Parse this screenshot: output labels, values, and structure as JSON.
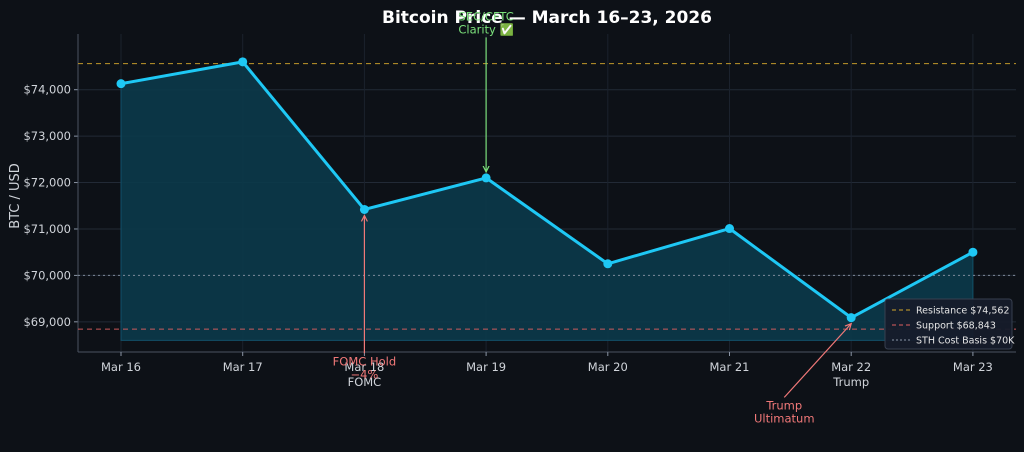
{
  "chart_data": {
    "type": "line",
    "title": "Bitcoin Price — March 16–23, 2026",
    "ylabel": "BTC / USD",
    "xlabel": "",
    "categories": [
      "Mar 16",
      "Mar 17",
      "Mar 18",
      "Mar 19",
      "Mar 20",
      "Mar 21",
      "Mar 22",
      "Mar 23"
    ],
    "series": [
      {
        "values": [
          74130,
          74600,
          71420,
          72100,
          70250,
          71010,
          69090,
          70500
        ],
        "color": "#1ec8f5",
        "fill": "#0b3a4a"
      }
    ],
    "ylim": [
      68350,
      75200
    ],
    "yticks": [
      69000,
      70000,
      71000,
      72000,
      73000,
      74000
    ],
    "ytick_labels": [
      "$69,000",
      "$70,000",
      "$71,000",
      "$72,000",
      "$73,000",
      "$74,000"
    ],
    "area_floor": 68600,
    "grid": true,
    "reference_lines": [
      {
        "label": "Resistance $74,562",
        "value": 74562,
        "color": "#d4a72c",
        "style": "dashed"
      },
      {
        "label": "Support $68,843",
        "value": 68843,
        "color": "#e06060",
        "style": "dashed"
      },
      {
        "label": "STH Cost Basis $70K",
        "value": 70000,
        "color": "#8b95a5",
        "style": "dotted"
      }
    ],
    "legend_position": "bottom-right",
    "annotations": [
      {
        "lines": [
          "SEC/CFTC",
          "Clarity ✅"
        ],
        "category": "Mar 19",
        "value": 72100,
        "color": "#7be07b",
        "text_value": 75450
      },
      {
        "lines": [
          "FOMC Hold",
          "−4%"
        ],
        "category": "Mar 18",
        "value": 71420,
        "color": "#f07878",
        "text_value": 68150
      },
      {
        "lines": [
          "Trump",
          "Ultimatum"
        ],
        "category": "Mar 22",
        "value": 69090,
        "color": "#f07878",
        "text_value": 67200,
        "x_offset": -0.55
      }
    ],
    "x_sublabels": [
      {
        "category": "Mar 18",
        "text": "FOMC"
      },
      {
        "category": "Mar 22",
        "text": "Trump"
      }
    ]
  }
}
